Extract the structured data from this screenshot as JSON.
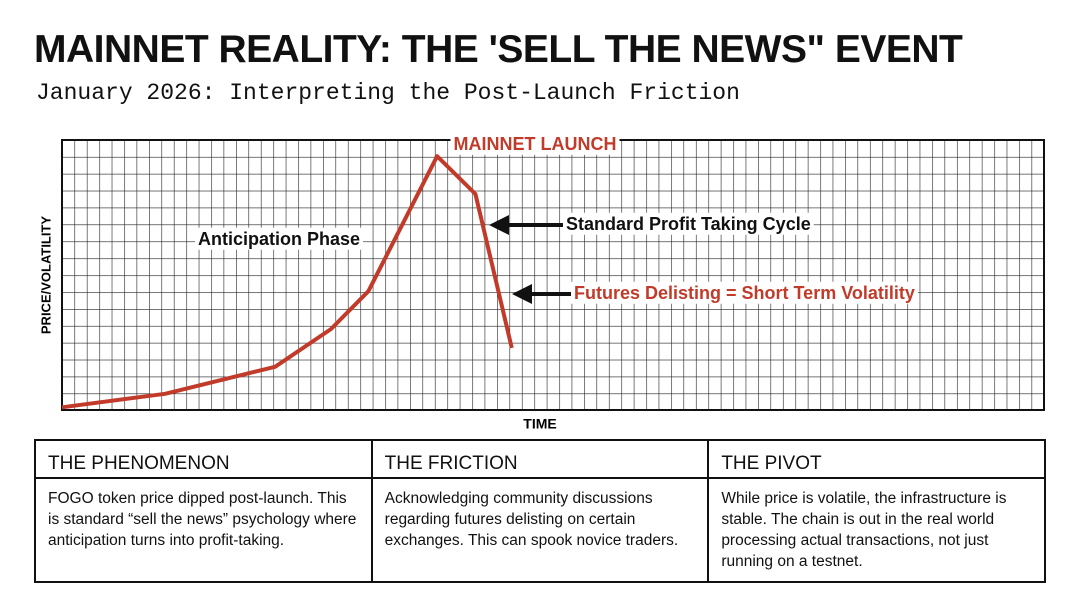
{
  "header": {
    "title": "MAINNET REALITY: THE 'SELL THE NEWS\" EVENT",
    "subtitle": "January 2026: Interpreting the Post-Launch Friction"
  },
  "chart_data": {
    "type": "line",
    "x_label": "TIME",
    "y_label": "PRICE/VOLATILITY",
    "x": [
      0,
      10.5,
      21.7,
      27.4,
      31.2,
      38.2,
      42.1,
      45.8
    ],
    "values": [
      1,
      6,
      16,
      30,
      44,
      94,
      80,
      23
    ],
    "color": "#c23b2a",
    "xlim": [
      0,
      100
    ],
    "ylim": [
      0,
      100
    ],
    "grid": true,
    "annotations": [
      {
        "text": "MAINNET LAUNCH",
        "color": "#c23b2a"
      },
      {
        "text": "Anticipation Phase",
        "color": "#111111"
      },
      {
        "text": "Standard Profit Taking Cycle",
        "color": "#111111"
      },
      {
        "text": "Futures Delisting = Short Term Volatility",
        "color": "#c23b2a"
      }
    ]
  },
  "table": {
    "headers": [
      "THE PHENOMENON",
      "THE FRICTION",
      "THE PIVOT"
    ],
    "rows": [
      [
        "FOGO token price dipped post-launch. This is standard “sell the news” psychology where anticipation turns into profit-taking.",
        "Acknowledging community discussions regarding futures delisting on certain exchanges. This can spook novice traders.",
        "While price is volatile, the infrastructure is stable. The chain is out in the real world processing actual transactions, not just running on a testnet."
      ]
    ]
  }
}
